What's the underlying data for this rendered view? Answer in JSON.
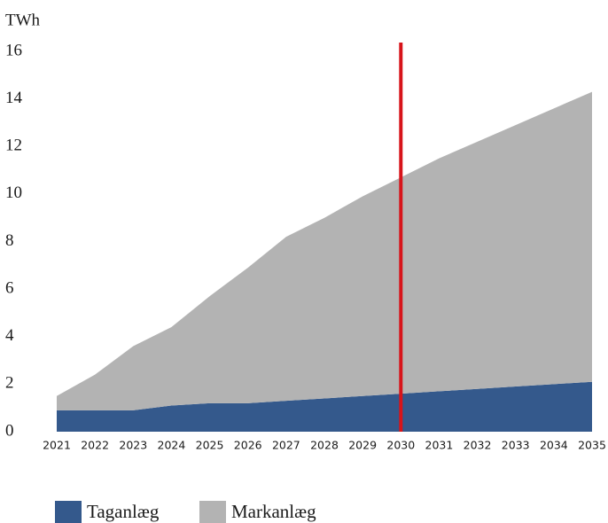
{
  "chart_data": {
    "type": "stacked_area",
    "y_label": "TWh",
    "categories": [
      "2021",
      "2022",
      "2023",
      "2024",
      "2025",
      "2026",
      "2027",
      "2028",
      "2029",
      "2030",
      "2031",
      "2032",
      "2033",
      "2034",
      "2035"
    ],
    "series": [
      {
        "name": "Taganlæg",
        "color": "#34598c",
        "values": [
          0.9,
          0.9,
          0.9,
          1.1,
          1.2,
          1.2,
          1.3,
          1.4,
          1.5,
          1.6,
          1.7,
          1.8,
          1.9,
          2.0,
          2.1
        ]
      },
      {
        "name": "Markanlæg",
        "color": "#b3b3b3",
        "values": [
          0.6,
          1.5,
          2.7,
          3.3,
          4.5,
          5.7,
          6.9,
          7.6,
          8.4,
          9.1,
          9.8,
          10.4,
          11.0,
          11.6,
          12.2
        ]
      }
    ],
    "ylim": [
      0,
      16
    ],
    "yticks": [
      0,
      2,
      4,
      6,
      8,
      10,
      12,
      14,
      16
    ],
    "grid": false,
    "vline": {
      "x": "2030",
      "color": "#d7141a"
    }
  }
}
